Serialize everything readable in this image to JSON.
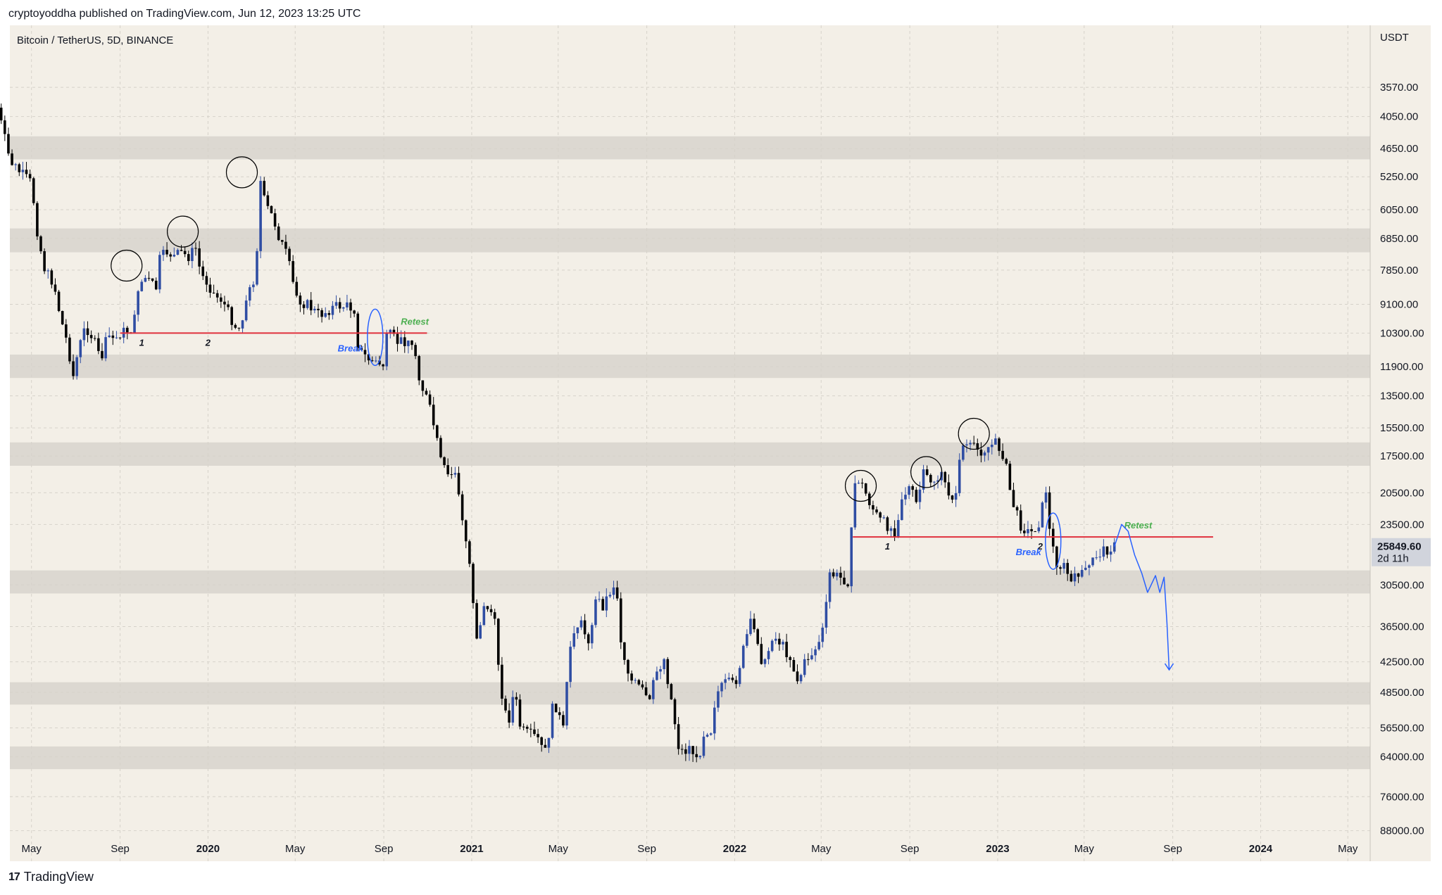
{
  "publisher": {
    "text": "cryptoyoddha published on TradingView.com, Jun 12, 2023 13:25 UTC"
  },
  "symbol": {
    "text": "Bitcoin / TetherUS, 5D, BINANCE"
  },
  "footer": {
    "brand": "TradingView",
    "logo": "17"
  },
  "colors": {
    "background": "#f3efe7",
    "zone": "#dcd8d1",
    "candle_up": "#000000",
    "candle_down": "#2f4da3",
    "red_line": "#e0313d",
    "retest_green": "#4caf50",
    "break_blue": "#2962ff",
    "circle": "#000000",
    "price_tag_bg": "#d1d4dc"
  },
  "chart_data": {
    "type": "candlestick",
    "title": "Bitcoin / TetherUS, 5D, BINANCE",
    "y_axis": {
      "unit_label": "USDT",
      "scale": "log",
      "inverted": true,
      "ticks": [
        3570,
        4050,
        4650,
        5250,
        6050,
        6850,
        7850,
        9100,
        10300,
        11900,
        13500,
        15500,
        17500,
        20500,
        23500,
        30500,
        36500,
        42500,
        48500,
        56500,
        64000,
        76000,
        88000
      ],
      "tick_labels": [
        "3570.00",
        "4050.00",
        "4650.00",
        "5250.00",
        "6050.00",
        "6850.00",
        "7850.00",
        "9100.00",
        "10300.00",
        "11900.00",
        "13500.00",
        "15500.00",
        "17500.00",
        "20500.00",
        "23500.00",
        "30500.00",
        "36500.00",
        "42500.00",
        "48500.00",
        "56500.00",
        "64000.00",
        "76000.00",
        "88000.00"
      ]
    },
    "x_axis": {
      "ticks": [
        {
          "label": "May",
          "date": "2019-05-01",
          "bold": false
        },
        {
          "label": "Sep",
          "date": "2019-09-01",
          "bold": false
        },
        {
          "label": "2020",
          "date": "2020-01-01",
          "bold": true
        },
        {
          "label": "May",
          "date": "2020-05-01",
          "bold": false
        },
        {
          "label": "Sep",
          "date": "2020-09-01",
          "bold": false
        },
        {
          "label": "2021",
          "date": "2021-01-01",
          "bold": true
        },
        {
          "label": "May",
          "date": "2021-05-01",
          "bold": false
        },
        {
          "label": "Sep",
          "date": "2021-09-01",
          "bold": false
        },
        {
          "label": "2022",
          "date": "2022-01-01",
          "bold": true
        },
        {
          "label": "May",
          "date": "2022-05-01",
          "bold": false
        },
        {
          "label": "Sep",
          "date": "2022-09-01",
          "bold": false
        },
        {
          "label": "2023",
          "date": "2023-01-01",
          "bold": true
        },
        {
          "label": "May",
          "date": "2023-05-01",
          "bold": false
        },
        {
          "label": "Sep",
          "date": "2023-09-01",
          "bold": false
        },
        {
          "label": "2024",
          "date": "2024-01-01",
          "bold": true
        },
        {
          "label": "May",
          "date": "2024-05-01",
          "bold": false
        }
      ]
    },
    "zones": [
      {
        "low": 4410,
        "high": 4870
      },
      {
        "low": 6560,
        "high": 7270
      },
      {
        "low": 11300,
        "high": 12500
      },
      {
        "low": 16500,
        "high": 18250
      },
      {
        "low": 28650,
        "high": 31650
      },
      {
        "low": 46400,
        "high": 51100
      },
      {
        "low": 61200,
        "high": 67500
      }
    ],
    "current_price": {
      "value": "25849.60",
      "countdown": "2d 11h"
    },
    "annotations": {
      "left": {
        "line_level": 10300,
        "line_from": "2019-09-01",
        "line_to": "2020-10-31",
        "labels": [
          {
            "text": "1",
            "date": "2019-10-01"
          },
          {
            "text": "2",
            "date": "2020-01-01"
          }
        ],
        "break_text": "Break",
        "break_date": "2020-08-20",
        "retest_text": "Retest",
        "retest_date": "2020-10-14",
        "circles": [
          {
            "date": "2019-09-10",
            "price": 7700
          },
          {
            "date": "2019-11-27",
            "price": 6650
          },
          {
            "date": "2020-02-17",
            "price": 5150
          }
        ]
      },
      "right": {
        "line_level": 24800,
        "line_from": "2022-06-14",
        "line_to": "2023-10-27",
        "labels": [
          {
            "text": "1",
            "date": "2022-08-01"
          },
          {
            "text": "2",
            "date": "2023-03-01"
          }
        ],
        "break_text": "Break",
        "break_date": "2023-03-19",
        "retest_text": "Retest",
        "retest_date": "2023-07-15",
        "circles": [
          {
            "date": "2022-06-25",
            "price": 19900
          },
          {
            "date": "2022-09-24",
            "price": 18750
          },
          {
            "date": "2022-11-29",
            "price": 15900
          }
        ]
      }
    },
    "series": {
      "interval": "5D",
      "start_date": "2019-03-15",
      "close_anchors": [
        [
          "2019-03-15",
          3900
        ],
        [
          "2019-04-01",
          4900
        ],
        [
          "2019-04-15",
          5150
        ],
        [
          "2019-05-01",
          5400
        ],
        [
          "2019-05-10",
          6800
        ],
        [
          "2019-05-20",
          7900
        ],
        [
          "2019-06-01",
          8300
        ],
        [
          "2019-06-10",
          9600
        ],
        [
          "2019-06-20",
          10800
        ],
        [
          "2019-06-28",
          12400
        ],
        [
          "2019-07-05",
          11100
        ],
        [
          "2019-07-15",
          10000
        ],
        [
          "2019-07-25",
          10500
        ],
        [
          "2019-08-05",
          11600
        ],
        [
          "2019-08-15",
          10400
        ],
        [
          "2019-08-25",
          10600
        ],
        [
          "2019-09-01",
          10300
        ],
        [
          "2019-09-10",
          10200
        ],
        [
          "2019-09-20",
          10050
        ],
        [
          "2019-09-25",
          8500
        ],
        [
          "2019-10-05",
          8100
        ],
        [
          "2019-10-15",
          8350
        ],
        [
          "2019-10-22",
          8500
        ],
        [
          "2019-10-26",
          7500
        ],
        [
          "2019-11-05",
          7250
        ],
        [
          "2019-11-15",
          7400
        ],
        [
          "2019-11-25",
          7300
        ],
        [
          "2019-12-05",
          7400
        ],
        [
          "2019-12-15",
          7150
        ],
        [
          "2019-12-22",
          8000
        ],
        [
          "2020-01-01",
          8300
        ],
        [
          "2020-01-10",
          8750
        ],
        [
          "2020-01-20",
          8900
        ],
        [
          "2020-02-01",
          9600
        ],
        [
          "2020-02-12",
          10200
        ],
        [
          "2020-02-25",
          8800
        ],
        [
          "2020-03-08",
          7900
        ],
        [
          "2020-03-12",
          5200
        ],
        [
          "2020-03-20",
          5900
        ],
        [
          "2020-04-01",
          6300
        ],
        [
          "2020-04-10",
          6900
        ],
        [
          "2020-04-20",
          7400
        ],
        [
          "2020-05-01",
          8700
        ],
        [
          "2020-05-10",
          9000
        ],
        [
          "2020-05-20",
          9150
        ],
        [
          "2020-06-01",
          9500
        ],
        [
          "2020-06-10",
          9450
        ],
        [
          "2020-06-20",
          9250
        ],
        [
          "2020-07-01",
          9150
        ],
        [
          "2020-07-15",
          9200
        ],
        [
          "2020-07-22",
          9300
        ],
        [
          "2020-07-28",
          11100
        ],
        [
          "2020-08-10",
          11500
        ],
        [
          "2020-08-20",
          11700
        ],
        [
          "2020-09-01",
          11800
        ],
        [
          "2020-09-06",
          10300
        ],
        [
          "2020-09-20",
          10700
        ],
        [
          "2020-10-05",
          10600
        ],
        [
          "2020-10-15",
          11300
        ],
        [
          "2020-10-22",
          12800
        ],
        [
          "2020-11-01",
          13800
        ],
        [
          "2020-11-10",
          15500
        ],
        [
          "2020-11-20",
          18200
        ],
        [
          "2020-12-01",
          19200
        ],
        [
          "2020-12-10",
          18600
        ],
        [
          "2020-12-18",
          23000
        ],
        [
          "2020-12-28",
          27000
        ],
        [
          "2021-01-08",
          38000
        ],
        [
          "2021-01-20",
          33000
        ],
        [
          "2021-02-01",
          35000
        ],
        [
          "2021-02-10",
          47000
        ],
        [
          "2021-02-20",
          56000
        ],
        [
          "2021-03-01",
          48000
        ],
        [
          "2021-03-10",
          57000
        ],
        [
          "2021-03-20",
          58000
        ],
        [
          "2021-04-01",
          59000
        ],
        [
          "2021-04-14",
          63000
        ],
        [
          "2021-04-25",
          50000
        ],
        [
          "2021-05-08",
          57000
        ],
        [
          "2021-05-12",
          49000
        ],
        [
          "2021-05-20",
          37000
        ],
        [
          "2021-06-01",
          36000
        ],
        [
          "2021-06-15",
          39000
        ],
        [
          "2021-06-22",
          32000
        ],
        [
          "2021-07-01",
          33500
        ],
        [
          "2021-07-20",
          30000
        ],
        [
          "2021-07-28",
          40000
        ],
        [
          "2021-08-10",
          46000
        ],
        [
          "2021-08-25",
          48000
        ],
        [
          "2021-09-06",
          51000
        ],
        [
          "2021-09-12",
          45000
        ],
        [
          "2021-09-25",
          42000
        ],
        [
          "2021-10-05",
          50000
        ],
        [
          "2021-10-15",
          61000
        ],
        [
          "2021-10-22",
          63000
        ],
        [
          "2021-11-01",
          61000
        ],
        [
          "2021-11-10",
          66000
        ],
        [
          "2021-11-20",
          57000
        ],
        [
          "2021-12-01",
          57000
        ],
        [
          "2021-12-05",
          49000
        ],
        [
          "2021-12-20",
          46500
        ],
        [
          "2022-01-01",
          47000
        ],
        [
          "2022-01-10",
          42000
        ],
        [
          "2022-01-22",
          36000
        ],
        [
          "2022-02-01",
          38000
        ],
        [
          "2022-02-10",
          44000
        ],
        [
          "2022-02-22",
          38000
        ],
        [
          "2022-03-05",
          39000
        ],
        [
          "2022-03-20",
          42000
        ],
        [
          "2022-03-30",
          46500
        ],
        [
          "2022-04-10",
          42000
        ],
        [
          "2022-04-25",
          40000
        ],
        [
          "2022-05-06",
          36000
        ],
        [
          "2022-05-12",
          29000
        ],
        [
          "2022-05-25",
          29500
        ],
        [
          "2022-06-08",
          30000
        ],
        [
          "2022-06-14",
          22000
        ],
        [
          "2022-06-18",
          19000
        ],
        [
          "2022-06-28",
          20000
        ],
        [
          "2022-07-08",
          21500
        ],
        [
          "2022-07-20",
          23000
        ],
        [
          "2022-07-30",
          23500
        ],
        [
          "2022-08-12",
          24300
        ],
        [
          "2022-08-20",
          21000
        ],
        [
          "2022-09-01",
          20000
        ],
        [
          "2022-09-10",
          21500
        ],
        [
          "2022-09-20",
          19000
        ],
        [
          "2022-10-01",
          19500
        ],
        [
          "2022-10-15",
          19200
        ],
        [
          "2022-10-25",
          20500
        ],
        [
          "2022-11-05",
          21000
        ],
        [
          "2022-11-09",
          17500
        ],
        [
          "2022-11-15",
          16600
        ],
        [
          "2022-11-30",
          17000
        ],
        [
          "2022-12-10",
          17100
        ],
        [
          "2022-12-20",
          16800
        ],
        [
          "2022-12-30",
          16550
        ],
        [
          "2023-01-10",
          17500
        ],
        [
          "2023-01-20",
          21000
        ],
        [
          "2023-02-01",
          23500
        ],
        [
          "2023-02-15",
          24500
        ],
        [
          "2023-02-28",
          23200
        ],
        [
          "2023-03-09",
          20200
        ],
        [
          "2023-03-15",
          25000
        ],
        [
          "2023-03-25",
          28000
        ],
        [
          "2023-04-05",
          28300
        ],
        [
          "2023-04-14",
          30500
        ],
        [
          "2023-04-25",
          28500
        ],
        [
          "2023-05-05",
          29000
        ],
        [
          "2023-05-15",
          27000
        ],
        [
          "2023-05-25",
          26500
        ],
        [
          "2023-06-05",
          26000
        ],
        [
          "2023-06-12",
          25849.6
        ]
      ]
    },
    "forecast_path": [
      [
        "2023-06-12",
        25849.6
      ],
      [
        "2023-06-22",
        23500
      ],
      [
        "2023-07-01",
        24200
      ],
      [
        "2023-07-10",
        26800
      ],
      [
        "2023-07-20",
        29000
      ],
      [
        "2023-07-28",
        31500
      ],
      [
        "2023-08-02",
        30500
      ],
      [
        "2023-08-08",
        29300
      ],
      [
        "2023-08-14",
        31500
      ],
      [
        "2023-08-20",
        29500
      ],
      [
        "2023-08-24",
        36000
      ],
      [
        "2023-08-27",
        44000
      ]
    ]
  }
}
